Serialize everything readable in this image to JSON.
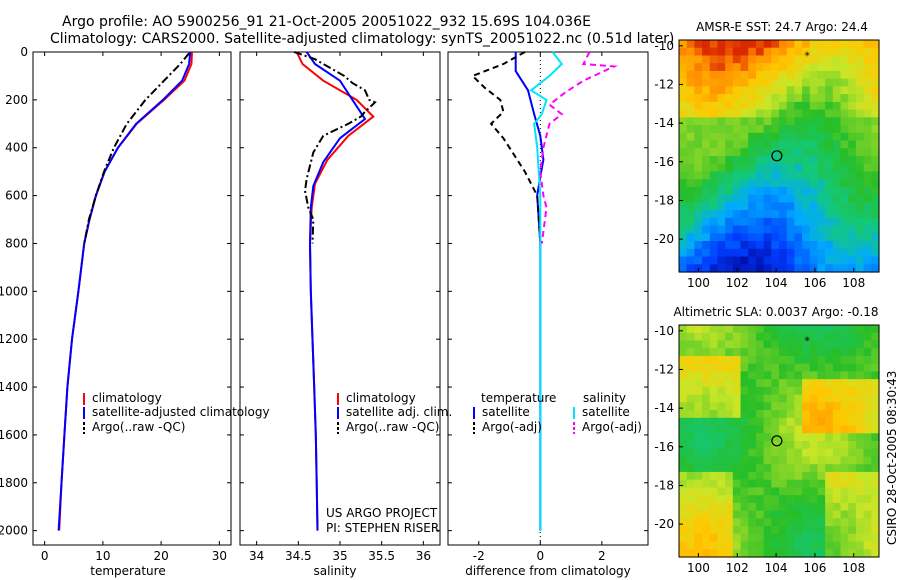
{
  "header": {
    "title_line1": "Argo profile: AO 5900256_91 21-Oct-2005 20051022_932 15.69S 104.036E",
    "title_line2": "Climatology: CARS2000. Satellite-adjusted climatology: synTS_20051022.nc (0.51d later)"
  },
  "side_stamp": "CSIRO 28-Oct-2005 08:30:43",
  "colors": {
    "climatology": "#ff0000",
    "satellite": "#0000ff",
    "argo": "#000000",
    "sal_sat": "#00e5ff",
    "sal_argo": "#ff00ff"
  },
  "chart_data": [
    {
      "type": "line",
      "xlabel": "temperature",
      "xlim": [
        -2,
        32
      ],
      "ylim": [
        0,
        2060
      ],
      "xticks": [
        "0",
        "10",
        "20",
        "30"
      ],
      "xtick_values": [
        0,
        10,
        20,
        30
      ],
      "yticks": [
        "0",
        "200",
        "400",
        "600",
        "800",
        "1000",
        "1200",
        "1400",
        "1600",
        "1800",
        "2000"
      ],
      "ytick_values": [
        0,
        200,
        400,
        600,
        800,
        1000,
        1200,
        1400,
        1600,
        1800,
        2000
      ],
      "legend": [
        "climatology",
        "satellite-adjusted climatology",
        "Argo(..raw -QC)"
      ],
      "series": [
        {
          "name": "climatology",
          "style": "solid",
          "color": "#ff0000",
          "points": [
            [
              25.3,
              0
            ],
            [
              25.2,
              50
            ],
            [
              24.0,
              120
            ],
            [
              20.5,
              200
            ],
            [
              15.8,
              300
            ],
            [
              12.6,
              400
            ],
            [
              10.3,
              500
            ],
            [
              8.8,
              600
            ],
            [
              7.7,
              700
            ],
            [
              6.8,
              800
            ],
            [
              5.8,
              1000
            ],
            [
              4.7,
              1200
            ],
            [
              3.9,
              1400
            ],
            [
              3.4,
              1600
            ],
            [
              2.9,
              1800
            ],
            [
              2.5,
              2000
            ]
          ]
        },
        {
          "name": "satellite-adjusted climatology",
          "style": "solid",
          "color": "#0000ff",
          "points": [
            [
              25.0,
              0
            ],
            [
              24.8,
              50
            ],
            [
              23.6,
              120
            ],
            [
              20.3,
              200
            ],
            [
              15.7,
              300
            ],
            [
              12.6,
              400
            ],
            [
              10.3,
              500
            ],
            [
              8.8,
              600
            ],
            [
              7.7,
              700
            ],
            [
              6.8,
              800
            ],
            [
              5.8,
              1000
            ],
            [
              4.7,
              1200
            ],
            [
              3.9,
              1400
            ],
            [
              3.4,
              1600
            ],
            [
              2.9,
              1800
            ],
            [
              2.4,
              2000
            ]
          ]
        },
        {
          "name": "Argo(..raw -QC)",
          "style": "dashdot",
          "color": "#000000",
          "points": [
            [
              24.8,
              5
            ],
            [
              23.3,
              50
            ],
            [
              20.5,
              120
            ],
            [
              17.3,
              200
            ],
            [
              14.1,
              300
            ],
            [
              11.9,
              400
            ],
            [
              10.2,
              500
            ],
            [
              8.8,
              600
            ],
            [
              7.6,
              700
            ],
            [
              6.8,
              800
            ]
          ]
        }
      ]
    },
    {
      "type": "line",
      "xlabel": "salinity",
      "xlim": [
        33.8,
        36.2
      ],
      "ylim": [
        0,
        2060
      ],
      "xticks": [
        "34",
        "34.5",
        "35",
        "35.5",
        "36"
      ],
      "xtick_values": [
        34,
        34.5,
        35,
        35.5,
        36
      ],
      "legend": [
        "climatology",
        "satellite adj. clim.",
        "Argo(..raw -QC)"
      ],
      "annotations": [
        "US ARGO PROJECT",
        "PI: STEPHEN RISER"
      ],
      "series": [
        {
          "name": "climatology",
          "style": "solid",
          "color": "#ff0000",
          "points": [
            [
              34.48,
              0
            ],
            [
              34.55,
              50
            ],
            [
              34.8,
              120
            ],
            [
              35.2,
              200
            ],
            [
              35.4,
              270
            ],
            [
              35.1,
              350
            ],
            [
              34.85,
              450
            ],
            [
              34.7,
              550
            ],
            [
              34.66,
              650
            ],
            [
              34.64,
              800
            ],
            [
              34.65,
              1000
            ],
            [
              34.67,
              1200
            ],
            [
              34.69,
              1400
            ],
            [
              34.71,
              1600
            ],
            [
              34.72,
              1800
            ],
            [
              34.73,
              2000
            ]
          ]
        },
        {
          "name": "satellite adj. clim.",
          "style": "solid",
          "color": "#0000ff",
          "points": [
            [
              34.6,
              0
            ],
            [
              34.7,
              50
            ],
            [
              35.0,
              120
            ],
            [
              35.15,
              200
            ],
            [
              35.3,
              280
            ],
            [
              35.0,
              360
            ],
            [
              34.8,
              460
            ],
            [
              34.68,
              560
            ],
            [
              34.65,
              650
            ],
            [
              34.64,
              800
            ],
            [
              34.65,
              1000
            ],
            [
              34.67,
              1200
            ],
            [
              34.69,
              1400
            ],
            [
              34.71,
              1600
            ],
            [
              34.72,
              1800
            ],
            [
              34.73,
              2000
            ]
          ]
        },
        {
          "name": "Argo(..raw -QC)",
          "style": "dashdot",
          "color": "#000000",
          "points": [
            [
              34.45,
              0
            ],
            [
              34.7,
              30
            ],
            [
              34.85,
              60
            ],
            [
              35.05,
              100
            ],
            [
              35.15,
              130
            ],
            [
              35.3,
              160
            ],
            [
              35.35,
              200
            ],
            [
              35.42,
              210
            ],
            [
              35.3,
              250
            ],
            [
              35.25,
              270
            ],
            [
              35.1,
              300
            ],
            [
              34.8,
              350
            ],
            [
              34.68,
              420
            ],
            [
              34.6,
              530
            ],
            [
              34.58,
              580
            ],
            [
              34.62,
              650
            ],
            [
              34.68,
              700
            ],
            [
              34.67,
              800
            ]
          ]
        }
      ]
    },
    {
      "type": "line",
      "xlabel": "difference from climatology",
      "xlim": [
        -3,
        3.5
      ],
      "ylim": [
        0,
        2060
      ],
      "xticks": [
        "-2",
        "0",
        "2"
      ],
      "xtick_values": [
        -2,
        0,
        2
      ],
      "legend": [
        "temperature",
        "satellite",
        "Argo(-adj)",
        "salinity",
        "satellite",
        "Argo(-adj)"
      ],
      "series": [
        {
          "name": "temperature satellite",
          "style": "solid",
          "color": "#0000ff",
          "points": [
            [
              -0.8,
              0
            ],
            [
              -0.8,
              80
            ],
            [
              -0.4,
              160
            ],
            [
              -0.2,
              260
            ],
            [
              0.0,
              350
            ],
            [
              0.1,
              450
            ],
            [
              0.0,
              520
            ],
            [
              -0.1,
              600
            ],
            [
              -0.05,
              700
            ],
            [
              0.0,
              800
            ],
            [
              0.0,
              1000
            ],
            [
              0.0,
              1200
            ],
            [
              0.0,
              1400
            ],
            [
              0.0,
              1600
            ],
            [
              0.0,
              1800
            ],
            [
              0.0,
              2000
            ]
          ]
        },
        {
          "name": "temperature Argo(-adj)",
          "style": "dashed",
          "color": "#000000",
          "points": [
            [
              -0.5,
              0
            ],
            [
              -1.2,
              50
            ],
            [
              -2.2,
              100
            ],
            [
              -1.8,
              150
            ],
            [
              -1.3,
              200
            ],
            [
              -1.2,
              250
            ],
            [
              -1.6,
              300
            ],
            [
              -1.2,
              360
            ],
            [
              -0.9,
              420
            ],
            [
              -0.5,
              500
            ],
            [
              -0.1,
              600
            ],
            [
              -0.05,
              700
            ],
            [
              0.0,
              800
            ]
          ]
        },
        {
          "name": "salinity satellite",
          "style": "solid",
          "color": "#00e5ff",
          "points": [
            [
              0.4,
              0
            ],
            [
              0.7,
              50
            ],
            [
              0.3,
              100
            ],
            [
              -0.3,
              160
            ],
            [
              0.2,
              200
            ],
            [
              0.05,
              260
            ],
            [
              -0.2,
              300
            ],
            [
              -0.1,
              400
            ],
            [
              0.0,
              600
            ],
            [
              0.0,
              800
            ],
            [
              0.0,
              1000
            ],
            [
              0.0,
              1200
            ],
            [
              0.0,
              1400
            ],
            [
              0.0,
              1600
            ],
            [
              0.0,
              1800
            ],
            [
              0.0,
              2000
            ]
          ]
        },
        {
          "name": "salinity Argo(-adj)",
          "style": "dashed",
          "color": "#ff00ff",
          "points": [
            [
              1.6,
              0
            ],
            [
              1.4,
              50
            ],
            [
              2.4,
              60
            ],
            [
              1.4,
              120
            ],
            [
              0.8,
              170
            ],
            [
              0.3,
              220
            ],
            [
              0.7,
              260
            ],
            [
              0.3,
              300
            ],
            [
              0.1,
              400
            ],
            [
              0.0,
              500
            ],
            [
              0.1,
              600
            ],
            [
              0.2,
              650
            ],
            [
              0.1,
              750
            ],
            [
              0.05,
              800
            ]
          ]
        }
      ]
    },
    {
      "type": "heatmap",
      "title": "AMSR-E SST: 24.7  Argo: 24.4",
      "xlim": [
        99,
        109.3
      ],
      "ylim": [
        -21.7,
        -9.7
      ],
      "xticks": [
        "100",
        "102",
        "104",
        "106",
        "108"
      ],
      "xtick_values": [
        100,
        102,
        104,
        106,
        108
      ],
      "yticks": [
        "-10",
        "-12",
        "-14",
        "-16",
        "-18",
        "-20"
      ],
      "ytick_values": [
        -10,
        -12,
        -14,
        -16,
        -18,
        -20
      ],
      "marker": {
        "lon": 104.04,
        "lat": -15.69
      },
      "star": {
        "lon": 105.6,
        "lat": -10.5
      }
    },
    {
      "type": "heatmap",
      "title": "Altimetric SLA: 0.0037  Argo: -0.18",
      "xlim": [
        99,
        109.3
      ],
      "ylim": [
        -21.7,
        -9.7
      ],
      "xticks": [
        "100",
        "102",
        "104",
        "106",
        "108"
      ],
      "xtick_values": [
        100,
        102,
        104,
        106,
        108
      ],
      "yticks": [
        "-10",
        "-12",
        "-14",
        "-16",
        "-18",
        "-20"
      ],
      "ytick_values": [
        -10,
        -12,
        -14,
        -16,
        -18,
        -20
      ],
      "marker": {
        "lon": 104.04,
        "lat": -15.69
      },
      "star": {
        "lon": 105.6,
        "lat": -10.5
      }
    }
  ]
}
